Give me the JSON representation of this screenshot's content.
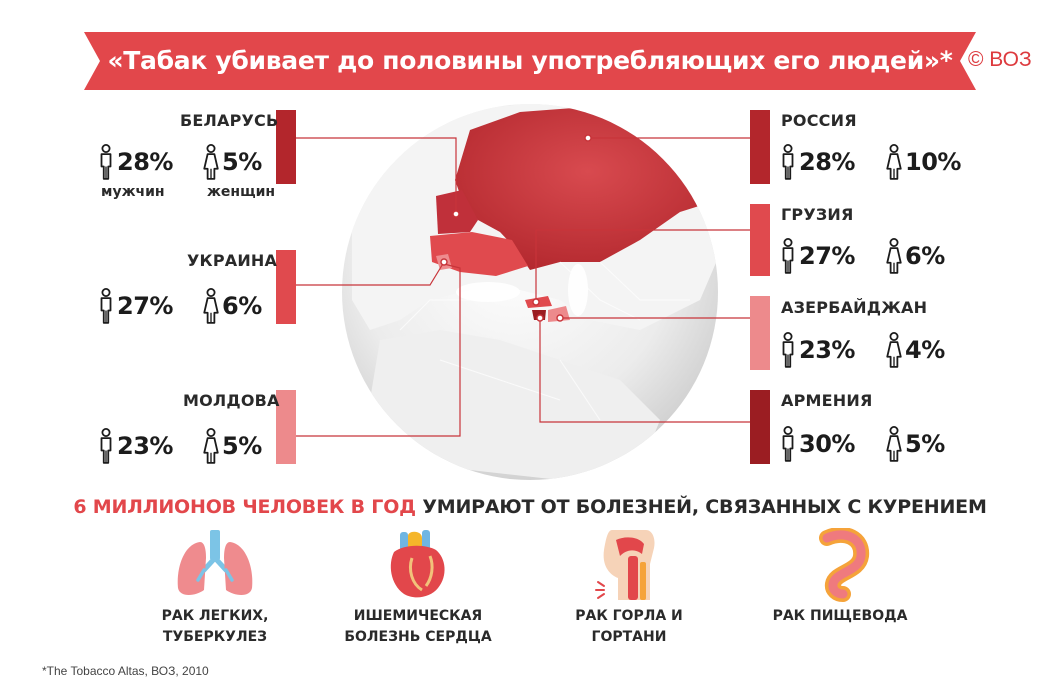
{
  "title": "«Табак убивает до половины употребляющих его людей»*",
  "source_mark": "© ВОЗ",
  "colors": {
    "ribbon": "#e2474b",
    "dark_red": "#b3262c",
    "mid_red": "#e04a4e",
    "light_red": "#ed8a8c",
    "deep_red": "#9b1d22"
  },
  "legend": {
    "men": "мужчин",
    "women": "женщин"
  },
  "countries": {
    "belarus": {
      "name": "БЕЛАРУСЬ",
      "men": "28%",
      "women": "5%"
    },
    "ukraine": {
      "name": "УКРАИНА",
      "men": "27%",
      "women": "6%"
    },
    "moldova": {
      "name": "МОЛДОВА",
      "men": "23%",
      "women": "5%"
    },
    "russia": {
      "name": "РОССИЯ",
      "men": "28%",
      "women": "10%"
    },
    "georgia": {
      "name": "ГРУЗИЯ",
      "men": "27%",
      "women": "6%"
    },
    "azerbaijan": {
      "name": "АЗЕРБАЙДЖАН",
      "men": "23%",
      "women": "4%"
    },
    "armenia": {
      "name": "АРМЕНИЯ",
      "men": "30%",
      "women": "5%"
    }
  },
  "headline": {
    "red": "6 МИЛЛИОНОВ ЧЕЛОВЕК В ГОД",
    "dark": "УМИРАЮТ ОТ БОЛЕЗНЕЙ, СВЯЗАННЫХ С КУРЕНИЕМ"
  },
  "diseases": [
    {
      "line1": "РАК ЛЕГКИХ,",
      "line2": "ТУБЕРКУЛЕЗ",
      "icon": "lungs-icon"
    },
    {
      "line1": "ИШЕМИЧЕСКАЯ",
      "line2": "БОЛЕЗНЬ СЕРДЦА",
      "icon": "heart-icon"
    },
    {
      "line1": "РАК ГОРЛА И ГОРТАНИ",
      "line2": "",
      "icon": "throat-icon"
    },
    {
      "line1": "РАК ПИЩЕВОДА",
      "line2": "",
      "icon": "esophagus-icon"
    }
  ],
  "footnote": "*The Tobacco Altas, ВОЗ, 2010"
}
